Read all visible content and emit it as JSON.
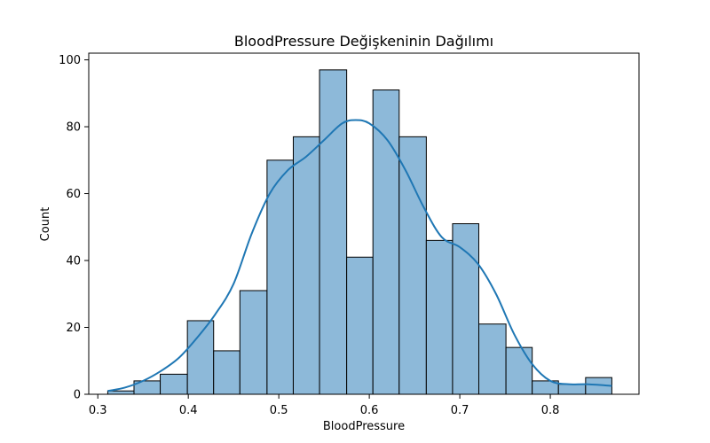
{
  "chart_data": {
    "type": "bar",
    "title": "BloodPressure Değişkeninin Dağılımı",
    "xlabel": "BloodPressure",
    "ylabel": "Count",
    "xlim": [
      0.29,
      0.898
    ],
    "ylim": [
      0,
      102
    ],
    "xticks": [
      0.3,
      0.4,
      0.5,
      0.6,
      0.7,
      0.8
    ],
    "xtick_labels": [
      "0.3",
      "0.4",
      "0.5",
      "0.6",
      "0.7",
      "0.8"
    ],
    "yticks": [
      0,
      20,
      40,
      60,
      80,
      100
    ],
    "ytick_labels": [
      "0",
      "20",
      "40",
      "60",
      "80",
      "100"
    ],
    "bin_edges": [
      0.311,
      0.34,
      0.369,
      0.399,
      0.428,
      0.457,
      0.487,
      0.516,
      0.545,
      0.575,
      0.604,
      0.633,
      0.663,
      0.692,
      0.721,
      0.751,
      0.78,
      0.809,
      0.839,
      0.868
    ],
    "values": [
      1,
      4,
      6,
      22,
      13,
      31,
      70,
      77,
      97,
      41,
      91,
      77,
      46,
      51,
      21,
      14,
      4,
      3,
      5
    ],
    "kde": {
      "x": [
        0.311,
        0.33,
        0.35,
        0.37,
        0.39,
        0.41,
        0.43,
        0.45,
        0.47,
        0.49,
        0.51,
        0.53,
        0.55,
        0.57,
        0.585,
        0.6,
        0.62,
        0.64,
        0.66,
        0.68,
        0.7,
        0.72,
        0.74,
        0.76,
        0.78,
        0.8,
        0.82,
        0.84,
        0.868
      ],
      "y": [
        1,
        2,
        4,
        7,
        11,
        17,
        24,
        33,
        48,
        60,
        67,
        71,
        76,
        81,
        82,
        81,
        76,
        67,
        56,
        47,
        44,
        39,
        30,
        18,
        9,
        4,
        3,
        3,
        2.5
      ]
    },
    "bar_color": "#8db9d9",
    "bar_edge_color": "#000000",
    "line_color": "#1f77b4",
    "grid": false,
    "legend": "none"
  }
}
